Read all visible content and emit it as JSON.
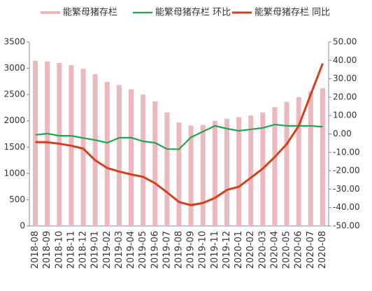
{
  "chart_data": {
    "type": "bar",
    "categories": [
      "2018-08",
      "2018-09",
      "2018-10",
      "2018-11",
      "2018-12",
      "2019-01",
      "2019-02",
      "2019-03",
      "2019-04",
      "2019-05",
      "2019-06",
      "2019-07",
      "2019-08",
      "2019-09",
      "2019-10",
      "2019-11",
      "2019-12",
      "2020-01",
      "2020-02",
      "2020-03",
      "2020-04",
      "2020-05",
      "2020-06",
      "2020-07",
      "2020-08"
    ],
    "series": [
      {
        "name": "能繁母猪存栏",
        "type": "bar",
        "color": "#ebb8bb",
        "values": [
          3140,
          3130,
          3100,
          3060,
          2990,
          2890,
          2740,
          2680,
          2600,
          2500,
          2370,
          2160,
          1970,
          1910,
          1920,
          2000,
          2040,
          2070,
          2100,
          2160,
          2260,
          2360,
          2450,
          2560,
          2620
        ]
      },
      {
        "name": "能繁母猪存栏 环比",
        "type": "line",
        "axis": "y2",
        "color": "#1ea64e",
        "values": [
          -0.5,
          0.2,
          -1,
          -1,
          -2.2,
          -3.3,
          -4.8,
          -2.1,
          -2.0,
          -4,
          -4.8,
          -8.2,
          -8.3,
          -1.8,
          1.3,
          4.4,
          2.9,
          1.7,
          2.5,
          3.3,
          5.1,
          4.4,
          4.4,
          4.4,
          3.9
        ]
      },
      {
        "name": "能繁母猪存栏 同比",
        "type": "line",
        "axis": "y2",
        "color": "#d4401c",
        "values": [
          -4.4,
          -4.5,
          -5.3,
          -6.4,
          -8.0,
          -14.3,
          -18.5,
          -20.4,
          -22,
          -23.3,
          -26.8,
          -31.7,
          -37,
          -38.7,
          -37.5,
          -34.8,
          -30.4,
          -28.7,
          -23.8,
          -18.8,
          -12.5,
          -5.5,
          4.4,
          21.4,
          38.3
        ]
      }
    ],
    "ylim": [
      0,
      3500
    ],
    "yticks": [
      0,
      500,
      1000,
      1500,
      2000,
      2500,
      3000,
      3500
    ],
    "y2lim": [
      -50,
      50
    ],
    "y2ticks": [
      {
        "value": -50,
        "label": "-50.00"
      },
      {
        "value": -40,
        "label": "-40.00"
      },
      {
        "value": -30,
        "label": "-30.00"
      },
      {
        "value": -20,
        "label": "-20.00"
      },
      {
        "value": -10,
        "label": "-10.00"
      },
      {
        "value": 0,
        "label": "0.00"
      },
      {
        "value": 10,
        "label": "10.00"
      },
      {
        "value": 20,
        "label": "20.00"
      },
      {
        "value": 30,
        "label": "30.00"
      },
      {
        "value": 40,
        "label": "40.00"
      },
      {
        "value": 50,
        "label": "50.00"
      }
    ],
    "grid": false
  }
}
